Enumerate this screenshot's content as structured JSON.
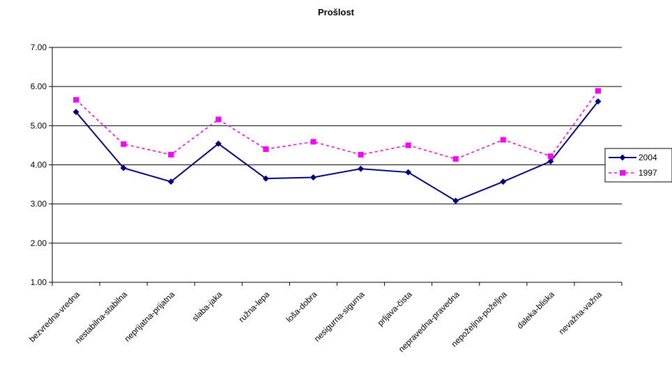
{
  "chart_data": {
    "type": "line",
    "title": "Prošlost",
    "xlabel": "",
    "ylabel": "",
    "ylim": [
      1.0,
      7.0
    ],
    "yticks": [
      "1.00",
      "2.00",
      "3.00",
      "4.00",
      "5.00",
      "6.00",
      "7.00"
    ],
    "grid": true,
    "legend_position": "right",
    "categories": [
      "bezvredna-vredna",
      "nestabilna-stabilna",
      "neprijatna-prijatna",
      "slaba-jaka",
      "ružna-lepa",
      "loša-dobra",
      "nesigurna-sigurna",
      "prljava-čista",
      "nepravedna-pravedna",
      "nepoželjna-poželjna",
      "daleka-bliska",
      "nevažna-važna"
    ],
    "series": [
      {
        "name": "2004",
        "color": "#000080",
        "marker": "diamond",
        "line": "solid",
        "values": [
          5.35,
          3.92,
          3.57,
          4.54,
          3.65,
          3.68,
          3.9,
          3.81,
          3.08,
          3.57,
          4.09,
          5.62
        ]
      },
      {
        "name": "1997",
        "color": "#ff00ff",
        "marker": "square",
        "line": "dashed",
        "values": [
          5.66,
          4.53,
          4.26,
          5.16,
          4.4,
          4.59,
          4.26,
          4.5,
          4.15,
          4.64,
          4.22,
          5.89
        ]
      }
    ]
  }
}
